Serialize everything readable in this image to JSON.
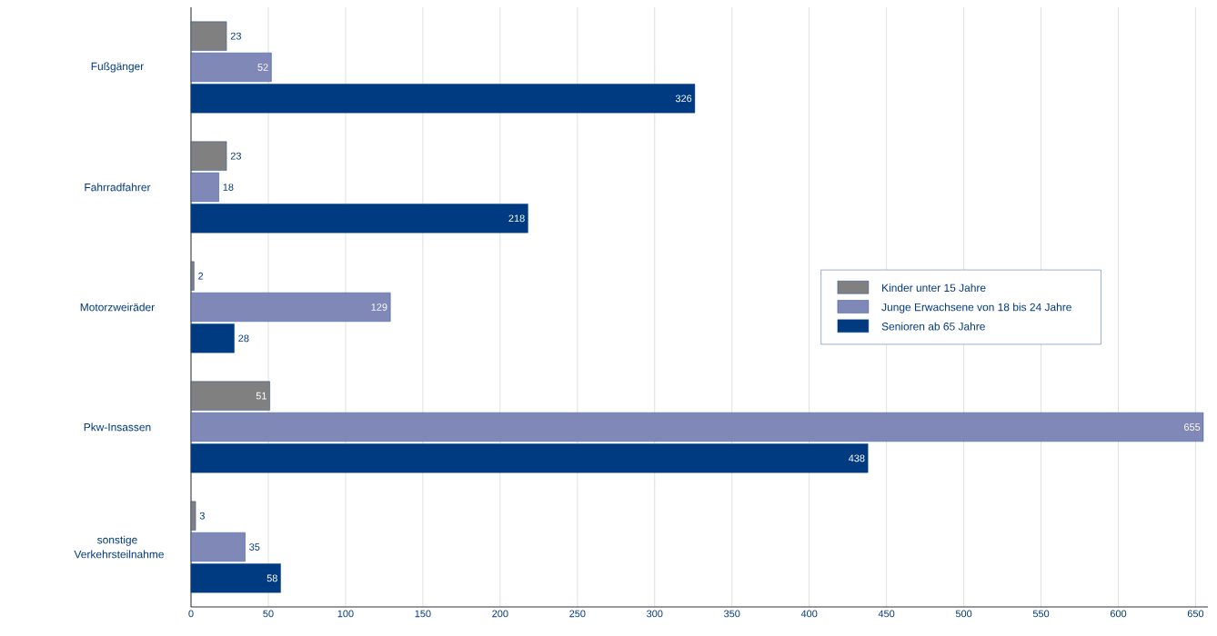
{
  "chart_data": {
    "type": "bar",
    "orientation": "horizontal",
    "categories": [
      "Fußgänger",
      "Fahrradfahrer",
      "Motorzweiräder",
      "Pkw-Insassen",
      "sonstige Verkehrsteilnahme"
    ],
    "series": [
      {
        "name": "Kinder unter 15 Jahre",
        "color": "#808080",
        "values": [
          23,
          23,
          2,
          51,
          3
        ]
      },
      {
        "name": "Junge Erwachsene von 18 bis 24 Jahre",
        "color": "#8088b8",
        "values": [
          52,
          18,
          129,
          655,
          35
        ]
      },
      {
        "name": "Senioren ab 65 Jahre",
        "color": "#003a80",
        "values": [
          326,
          218,
          28,
          438,
          58
        ]
      }
    ],
    "xlim": [
      0,
      658
    ],
    "xticks": [
      0,
      50,
      100,
      150,
      200,
      250,
      300,
      350,
      400,
      450,
      500,
      550,
      600,
      650
    ],
    "grid": "x",
    "legend": "right",
    "data_labels": true
  }
}
